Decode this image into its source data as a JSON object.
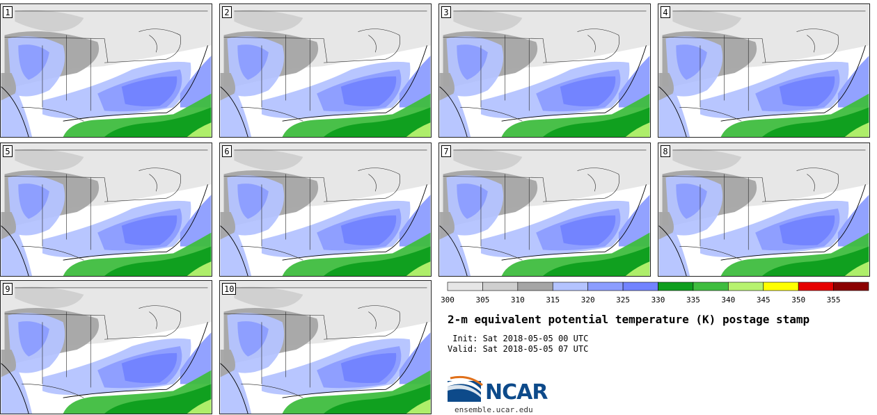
{
  "panels": [
    {
      "label": "1"
    },
    {
      "label": "2"
    },
    {
      "label": "3"
    },
    {
      "label": "4"
    },
    {
      "label": "5"
    },
    {
      "label": "6"
    },
    {
      "label": "7"
    },
    {
      "label": "8"
    },
    {
      "label": "9"
    },
    {
      "label": "10"
    }
  ],
  "chart_data": {
    "type": "heatmap",
    "title": "2-m equivalent potential temperature (K) postage stamp",
    "variable": "2-m equivalent potential temperature",
    "units": "K",
    "members": [
      "1",
      "2",
      "3",
      "4",
      "5",
      "6",
      "7",
      "8",
      "9",
      "10"
    ],
    "colorbar": {
      "ticks": [
        "300",
        "305",
        "310",
        "315",
        "320",
        "325",
        "330",
        "335",
        "340",
        "345",
        "350",
        "355"
      ],
      "bins": [
        {
          "min": 300,
          "max": 305,
          "color": "#e6e6e6"
        },
        {
          "min": 305,
          "max": 310,
          "color": "#cfcfcf"
        },
        {
          "min": 310,
          "max": 315,
          "color": "#a5a5a5"
        },
        {
          "min": 315,
          "max": 320,
          "color": "#b4c3ff"
        },
        {
          "min": 320,
          "max": 325,
          "color": "#8c9dff"
        },
        {
          "min": 325,
          "max": 330,
          "color": "#7283ff"
        },
        {
          "min": 330,
          "max": 335,
          "color": "#0e9e1e"
        },
        {
          "min": 335,
          "max": 340,
          "color": "#3fbd3f"
        },
        {
          "min": 340,
          "max": 345,
          "color": "#b7f26f"
        },
        {
          "min": 345,
          "max": 350,
          "color": "#ffff00"
        },
        {
          "min": 350,
          "max": 355,
          "color": "#e60000"
        },
        {
          "min": 355,
          "max": 360,
          "color": "#8b0000"
        }
      ]
    }
  },
  "info": {
    "init": " Init: Sat 2018-05-05 00 UTC",
    "valid": "Valid: Sat 2018-05-05 07 UTC"
  },
  "branding": {
    "logo_text": "NCAR",
    "url": "ensemble.ucar.edu"
  }
}
